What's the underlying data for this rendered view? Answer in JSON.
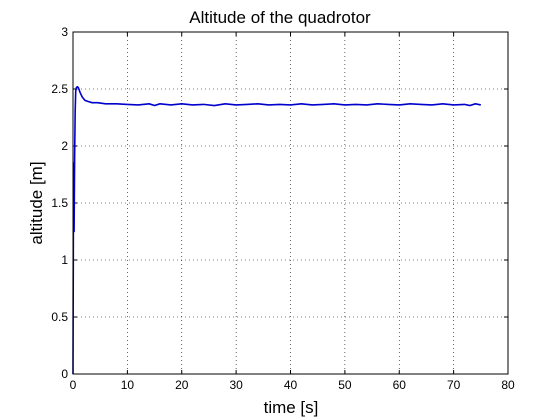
{
  "chart_data": {
    "type": "line",
    "title": "Altitude of the quadrotor",
    "xlabel": "time [s]",
    "ylabel": "altitude [m]",
    "xlim": [
      0,
      80
    ],
    "ylim": [
      0,
      3
    ],
    "xticks": [
      0,
      10,
      20,
      30,
      40,
      50,
      60,
      70,
      80
    ],
    "yticks": [
      0,
      0.5,
      1,
      1.5,
      2,
      2.5,
      3
    ],
    "xtick_labels": [
      "0",
      "10",
      "20",
      "30",
      "40",
      "50",
      "60",
      "70",
      "80"
    ],
    "ytick_labels": [
      "0",
      "0.5",
      "1",
      "1.5",
      "2",
      "2.5",
      "3"
    ],
    "grid": true,
    "grid_style": "dotted",
    "legend": "none",
    "series": [
      {
        "color": "#0000cc",
        "x": [
          0,
          0.1,
          0.2,
          0.3,
          0.4,
          0.5,
          0.6,
          0.8,
          1.0,
          1.3,
          1.7,
          2.2,
          2.8,
          3.5,
          4.5,
          6,
          8,
          10,
          12,
          14,
          15,
          16,
          18,
          20,
          22,
          24,
          26,
          28,
          30,
          32,
          34,
          36,
          38,
          40,
          42,
          44,
          46,
          48,
          50,
          52,
          54,
          56,
          58,
          60,
          62,
          64,
          66,
          68,
          70,
          72,
          73,
          74,
          75
        ],
        "y": [
          0,
          1.85,
          1.25,
          1.9,
          2.3,
          2.48,
          2.51,
          2.52,
          2.51,
          2.47,
          2.43,
          2.4,
          2.39,
          2.38,
          2.38,
          2.37,
          2.37,
          2.365,
          2.36,
          2.37,
          2.355,
          2.37,
          2.36,
          2.37,
          2.36,
          2.365,
          2.355,
          2.37,
          2.36,
          2.365,
          2.37,
          2.36,
          2.365,
          2.36,
          2.37,
          2.36,
          2.365,
          2.37,
          2.36,
          2.365,
          2.36,
          2.37,
          2.365,
          2.36,
          2.37,
          2.365,
          2.36,
          2.37,
          2.36,
          2.365,
          2.355,
          2.37,
          2.36
        ]
      }
    ]
  }
}
